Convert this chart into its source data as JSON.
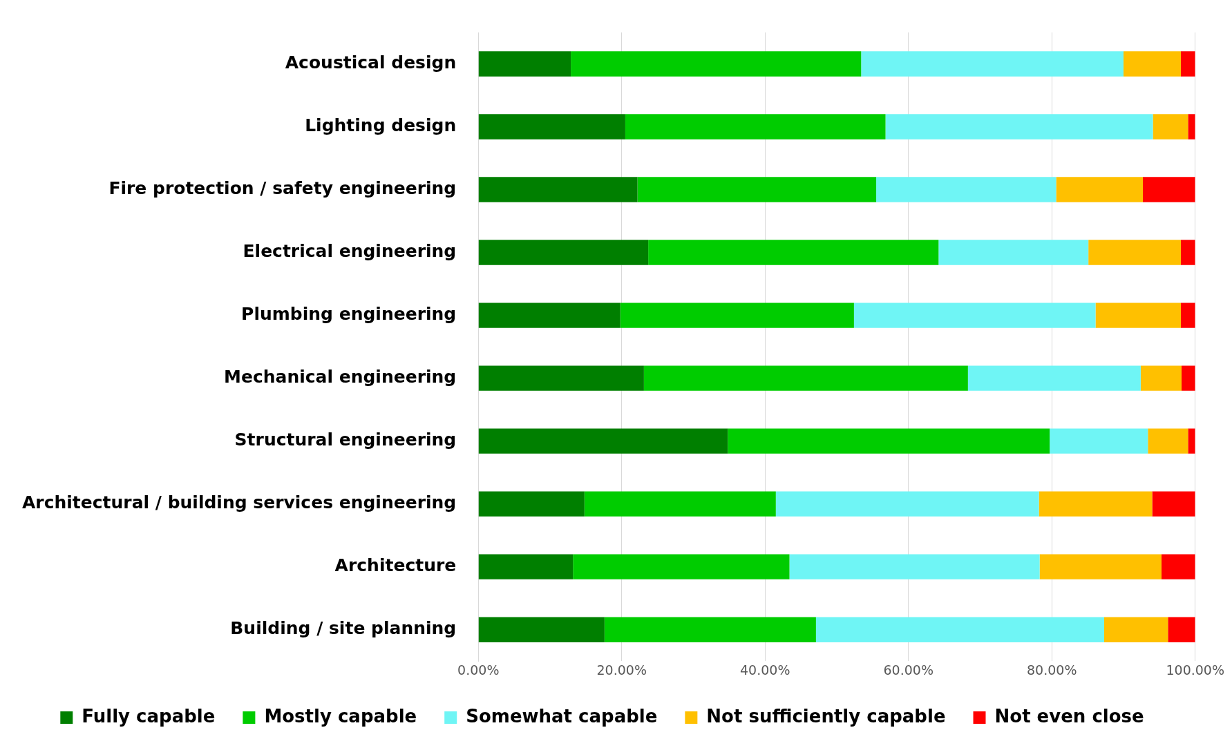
{
  "chart_data": {
    "type": "bar",
    "orientation": "horizontal",
    "stacked": true,
    "categories": [
      "Acoustical design",
      "Lighting design",
      "Fire protection / safety engineering",
      "Electrical engineering",
      "Plumbing engineering",
      "Mechanical engineering",
      "Structural engineering",
      "Architectural / building services engineering",
      "Architecture",
      "Building / site planning"
    ],
    "series": [
      {
        "name": "Fully capable",
        "color": "#007f00",
        "values": [
          12.9,
          20.5,
          22.2,
          23.7,
          19.8,
          23.1,
          34.8,
          14.8,
          13.2,
          17.6
        ]
      },
      {
        "name": "Mostly capable",
        "color": "#00cc00",
        "values": [
          40.5,
          36.3,
          33.3,
          40.5,
          32.6,
          45.2,
          44.9,
          26.7,
          30.2,
          29.5
        ]
      },
      {
        "name": "Somewhat capable",
        "color": "#6ff5f5",
        "values": [
          36.6,
          37.3,
          25.1,
          20.9,
          33.7,
          24.1,
          13.7,
          36.7,
          34.9,
          40.2
        ]
      },
      {
        "name": "Not sufficiently capable",
        "color": "#ffc000",
        "values": [
          8.0,
          4.9,
          12.1,
          12.9,
          11.9,
          5.7,
          5.6,
          15.8,
          17.0,
          8.9
        ]
      },
      {
        "name": "Not even close",
        "color": "#ff0000",
        "values": [
          2.0,
          1.0,
          7.3,
          2.0,
          2.0,
          1.9,
          1.0,
          6.0,
          4.7,
          3.8
        ]
      }
    ],
    "xlim": [
      0,
      100
    ],
    "xticks": [
      {
        "value": 0,
        "label": "0.00%"
      },
      {
        "value": 20,
        "label": "20.00%"
      },
      {
        "value": 40,
        "label": "40.00%"
      },
      {
        "value": 60,
        "label": "60.00%"
      },
      {
        "value": 80,
        "label": "80.00%"
      },
      {
        "value": 100,
        "label": "100.00%"
      }
    ],
    "grid": "x",
    "legend": "bottom"
  }
}
